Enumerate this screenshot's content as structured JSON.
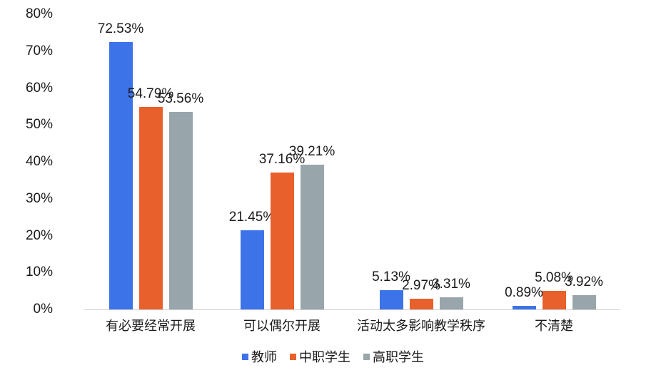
{
  "chart_data": {
    "type": "bar",
    "title": "",
    "xlabel": "",
    "ylabel": "",
    "ylim": [
      0,
      80
    ],
    "yticks": [
      "0%",
      "10%",
      "20%",
      "30%",
      "40%",
      "50%",
      "60%",
      "70%",
      "80%"
    ],
    "grid": false,
    "legend_position": "bottom",
    "categories": [
      "有必要经常开展",
      "可以偶尔开展",
      "活动太多影响教学秩序",
      "不清楚"
    ],
    "series": [
      {
        "name": "教师",
        "color": "#3d73e8",
        "values": [
          72.53,
          21.45,
          5.13,
          0.89
        ],
        "labels": [
          "72.53%",
          "21.45%",
          "5.13%",
          "0.89%"
        ]
      },
      {
        "name": "中职学生",
        "color": "#e8602c",
        "values": [
          54.79,
          37.16,
          2.97,
          5.08
        ],
        "labels": [
          "54.79%",
          "37.16%",
          "2.97%",
          "5.08%"
        ]
      },
      {
        "name": "高职学生",
        "color": "#98a6ab",
        "values": [
          53.56,
          39.21,
          3.31,
          3.92
        ],
        "labels": [
          "53.56%",
          "39.21%",
          "3.31%",
          "3.92%"
        ]
      }
    ]
  }
}
